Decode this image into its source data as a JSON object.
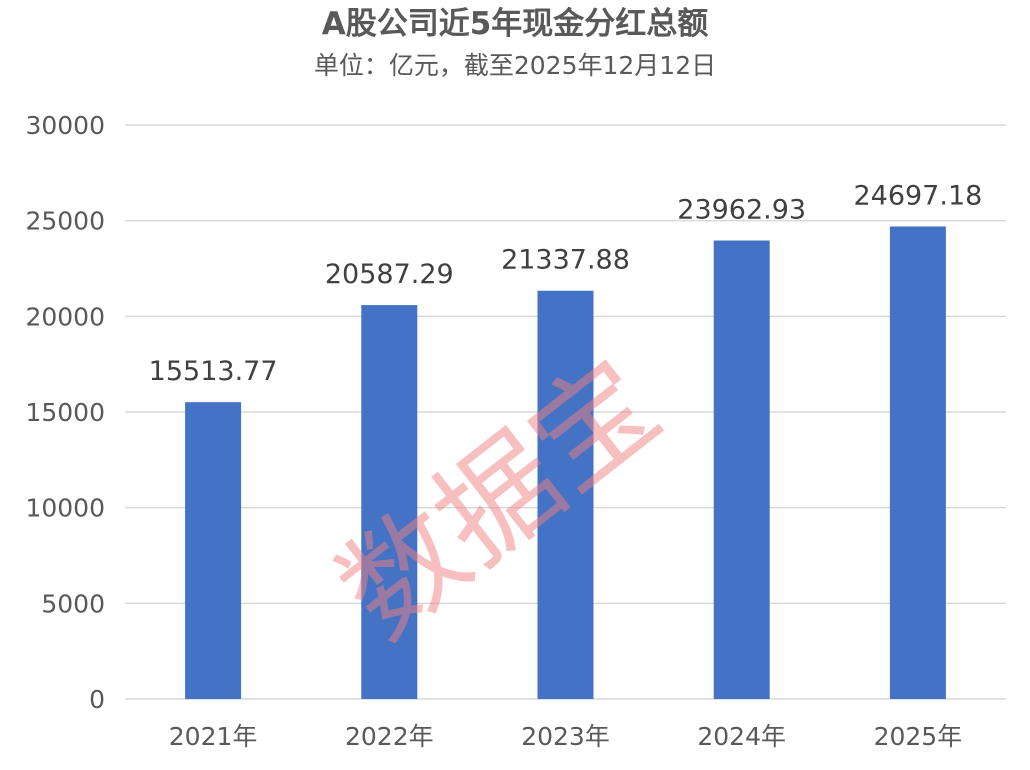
{
  "chart_data": {
    "type": "bar",
    "title": "A股公司近5年现金分红总额",
    "subtitle": "单位：亿元，截至2025年12月12日",
    "categories": [
      "2021年",
      "2022年",
      "2023年",
      "2024年",
      "2025年"
    ],
    "values": [
      15513.77,
      20587.29,
      21337.88,
      23962.93,
      24697.18
    ],
    "data_labels": [
      "15513.77",
      "20587.29",
      "21337.88",
      "23962.93",
      "24697.18"
    ],
    "ylim": [
      0,
      30000
    ],
    "yticks": [
      0,
      5000,
      10000,
      15000,
      20000,
      25000,
      30000
    ],
    "grid": true,
    "legend": "none",
    "bar_color": "#4472C4",
    "grid_color": "#D9D9D9"
  },
  "watermark": {
    "text": "数据宝",
    "color": "#F08080"
  }
}
